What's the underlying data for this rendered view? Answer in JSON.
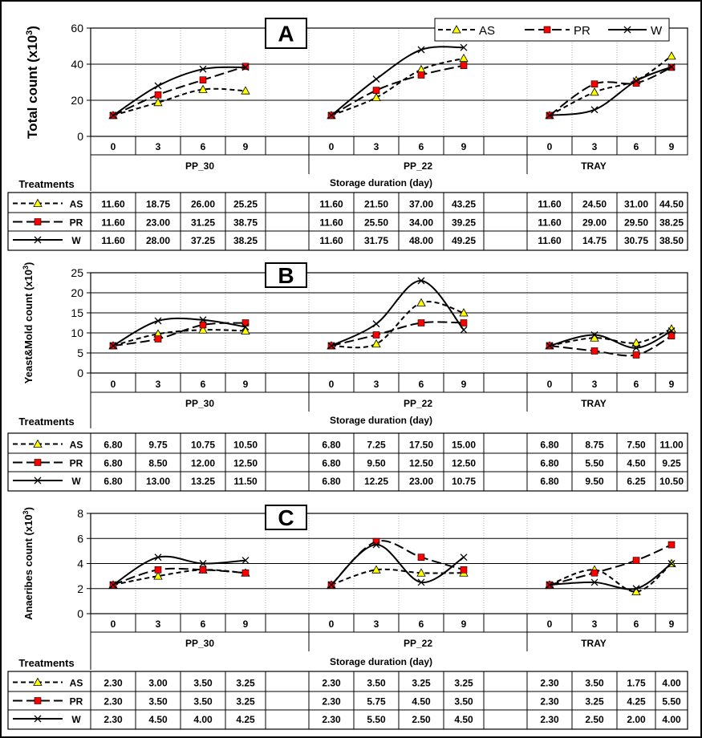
{
  "legend": {
    "series": [
      {
        "key": "AS",
        "label": "AS",
        "color": "#ffff00",
        "marker": "triangle",
        "dash": "dash"
      },
      {
        "key": "PR",
        "label": "PR",
        "color": "#ff0000",
        "marker": "square",
        "dash": "longdash"
      },
      {
        "key": "W",
        "label": "W",
        "color": "#000000",
        "marker": "x",
        "dash": "solid"
      }
    ]
  },
  "table_header": {
    "treatments": "Treatments",
    "xlabel": "Storage duration (day)"
  },
  "chart_data": [
    {
      "type": "line",
      "title": "A",
      "ylabel": "Total count (x10",
      "ylabel_sup": "3",
      "ylabel_end": ")",
      "ylim": [
        0,
        60
      ],
      "yticks": [
        0,
        20,
        40,
        60
      ],
      "groups": [
        "PP_30",
        "PP_22",
        "TRAY"
      ],
      "x": [
        "0",
        "3",
        "6",
        "9"
      ],
      "grid": true,
      "legend_position": "top-right",
      "series": [
        {
          "name": "AS",
          "values": [
            [
              11.6,
              18.75,
              26.0,
              25.25
            ],
            [
              11.6,
              21.5,
              37.0,
              43.25
            ],
            [
              11.6,
              24.5,
              31.0,
              44.5
            ]
          ],
          "labels": [
            [
              "11.60",
              "18.75",
              "26.00",
              "25.25"
            ],
            [
              "11.60",
              "21.50",
              "37.00",
              "43.25"
            ],
            [
              "11.60",
              "24.50",
              "31.00",
              "44.50"
            ]
          ]
        },
        {
          "name": "PR",
          "values": [
            [
              11.6,
              23.0,
              31.25,
              38.75
            ],
            [
              11.6,
              25.5,
              34.0,
              39.25
            ],
            [
              11.6,
              29.0,
              29.5,
              38.25
            ]
          ],
          "labels": [
            [
              "11.60",
              "23.00",
              "31.25",
              "38.75"
            ],
            [
              "11.60",
              "25.50",
              "34.00",
              "39.25"
            ],
            [
              "11.60",
              "29.00",
              "29.50",
              "38.25"
            ]
          ]
        },
        {
          "name": "W",
          "values": [
            [
              11.6,
              28.0,
              37.25,
              38.25
            ],
            [
              11.6,
              31.75,
              48.0,
              49.25
            ],
            [
              11.6,
              14.75,
              30.75,
              38.5
            ]
          ],
          "labels": [
            [
              "11.60",
              "28.00",
              "37.25",
              "38.25"
            ],
            [
              "11.60",
              "31.75",
              "48.00",
              "49.25"
            ],
            [
              "11.60",
              "14.75",
              "30.75",
              "38.50"
            ]
          ]
        }
      ]
    },
    {
      "type": "line",
      "title": "B",
      "ylabel": "Yeast&Mold count (x10",
      "ylabel_sup": "3",
      "ylabel_end": ")",
      "ylim": [
        0,
        25
      ],
      "yticks": [
        0,
        5,
        10,
        15,
        20,
        25
      ],
      "groups": [
        "PP_30",
        "PP_22",
        "TRAY"
      ],
      "x": [
        "0",
        "3",
        "6",
        "9"
      ],
      "grid": true,
      "series": [
        {
          "name": "AS",
          "values": [
            [
              6.8,
              9.75,
              10.75,
              10.5
            ],
            [
              6.8,
              7.25,
              17.5,
              15.0
            ],
            [
              6.8,
              8.75,
              7.5,
              11.0
            ]
          ],
          "labels": [
            [
              "6.80",
              "9.75",
              "10.75",
              "10.50"
            ],
            [
              "6.80",
              "7.25",
              "17.50",
              "15.00"
            ],
            [
              "6.80",
              "8.75",
              "7.50",
              "11.00"
            ]
          ]
        },
        {
          "name": "PR",
          "values": [
            [
              6.8,
              8.5,
              12.0,
              12.5
            ],
            [
              6.8,
              9.5,
              12.5,
              12.5
            ],
            [
              6.8,
              5.5,
              4.5,
              9.25
            ]
          ],
          "labels": [
            [
              "6.80",
              "8.50",
              "12.00",
              "12.50"
            ],
            [
              "6.80",
              "9.50",
              "12.50",
              "12.50"
            ],
            [
              "6.80",
              "5.50",
              "4.50",
              "9.25"
            ]
          ]
        },
        {
          "name": "W",
          "values": [
            [
              6.8,
              13.0,
              13.25,
              11.5
            ],
            [
              6.8,
              12.25,
              23.0,
              10.75
            ],
            [
              6.8,
              9.5,
              6.25,
              10.5
            ]
          ],
          "labels": [
            [
              "6.80",
              "13.00",
              "13.25",
              "11.50"
            ],
            [
              "6.80",
              "12.25",
              "23.00",
              "10.75"
            ],
            [
              "6.80",
              "9.50",
              "6.25",
              "10.50"
            ]
          ]
        }
      ]
    },
    {
      "type": "line",
      "title": "C",
      "ylabel": "Anaeribes count (x10",
      "ylabel_sup": "3",
      "ylabel_end": ")",
      "ylim": [
        0,
        8
      ],
      "yticks": [
        0,
        2,
        4,
        6,
        8
      ],
      "groups": [
        "PP_30",
        "PP_22",
        "TRAY"
      ],
      "x": [
        "0",
        "3",
        "6",
        "9"
      ],
      "grid": true,
      "series": [
        {
          "name": "AS",
          "values": [
            [
              2.3,
              3.0,
              3.5,
              3.25
            ],
            [
              2.3,
              3.5,
              3.25,
              3.25
            ],
            [
              2.3,
              3.5,
              1.75,
              4.0
            ]
          ],
          "labels": [
            [
              "2.30",
              "3.00",
              "3.50",
              "3.25"
            ],
            [
              "2.30",
              "3.50",
              "3.25",
              "3.25"
            ],
            [
              "2.30",
              "3.50",
              "1.75",
              "4.00"
            ]
          ]
        },
        {
          "name": "PR",
          "values": [
            [
              2.3,
              3.5,
              3.5,
              3.25
            ],
            [
              2.3,
              5.75,
              4.5,
              3.5
            ],
            [
              2.3,
              3.25,
              4.25,
              5.5
            ]
          ],
          "labels": [
            [
              "2.30",
              "3.50",
              "3.50",
              "3.25"
            ],
            [
              "2.30",
              "5.75",
              "4.50",
              "3.50"
            ],
            [
              "2.30",
              "3.25",
              "4.25",
              "5.50"
            ]
          ]
        },
        {
          "name": "W",
          "values": [
            [
              2.3,
              4.5,
              4.0,
              4.25
            ],
            [
              2.3,
              5.5,
              2.5,
              4.5
            ],
            [
              2.3,
              2.5,
              2.0,
              4.0
            ]
          ],
          "labels": [
            [
              "2.30",
              "4.50",
              "4.00",
              "4.25"
            ],
            [
              "2.30",
              "5.50",
              "2.50",
              "4.50"
            ],
            [
              "2.30",
              "2.50",
              "2.00",
              "4.00"
            ]
          ]
        }
      ]
    }
  ]
}
